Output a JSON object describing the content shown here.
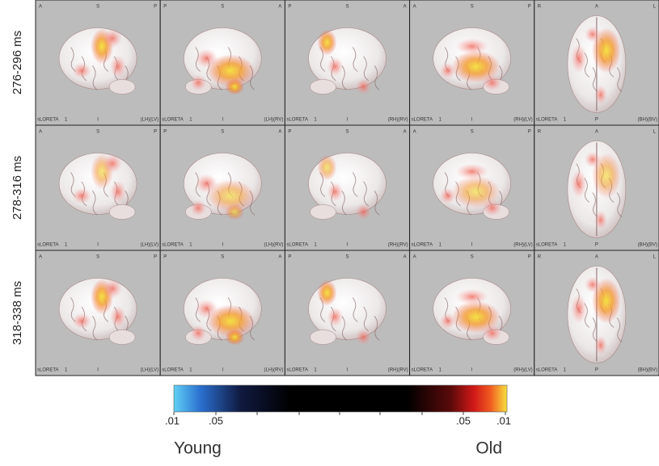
{
  "rows": [
    {
      "label": "276-296 ms"
    },
    {
      "label": "278-316 ms"
    },
    {
      "label": "318-338 ms"
    }
  ],
  "columns": [
    {
      "top": [
        "A",
        "S",
        "P"
      ],
      "bottom": "I",
      "hemisphere": "(LH)(LV)"
    },
    {
      "top": [
        "P",
        "S",
        "A"
      ],
      "bottom": "I",
      "hemisphere": "(LH)(RV)"
    },
    {
      "top": [
        "P",
        "S",
        "A"
      ],
      "bottom": "I",
      "hemisphere": "(RH)(RV)"
    },
    {
      "top": [
        "A",
        "S",
        "P"
      ],
      "bottom": "I",
      "hemisphere": "(RH)(LV)"
    },
    {
      "top": [
        "R",
        "A",
        "L"
      ],
      "bottom": "P",
      "hemisphere": "(BH)(BV)"
    }
  ],
  "method": "sLORETA",
  "threshold": "1",
  "colorbar": {
    "ticks": [
      ".01",
      ".05",
      ".05",
      ".01"
    ],
    "left_label": "Young",
    "right_label": "Old"
  }
}
